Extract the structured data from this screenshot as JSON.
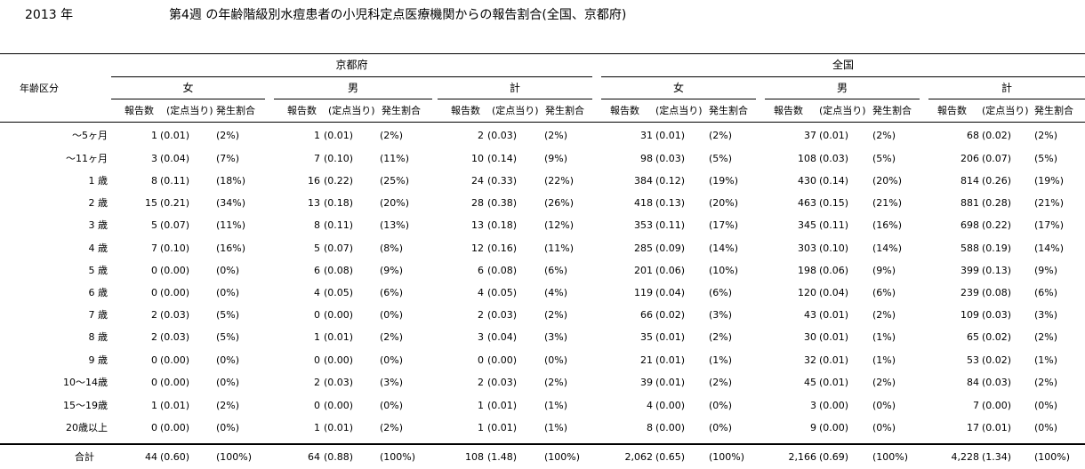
{
  "year": "2013 年",
  "title": "第4週 の年齢階級別水痘患者の小児科定点医療機関からの報告割合(全国、京都府)",
  "row_header": "年齢区分",
  "regions": [
    "京都府",
    "全国"
  ],
  "genders": [
    "女",
    "男",
    "計"
  ],
  "col_labels": [
    "報告数",
    "(定点当り)",
    "発生割合"
  ],
  "rows": [
    {
      "label": "～5ヶ月",
      "values": [
        [
          "1",
          "(0.01)",
          "(2%)"
        ],
        [
          "1",
          "(0.01)",
          "(2%)"
        ],
        [
          "2",
          "(0.03)",
          "(2%)"
        ],
        [
          "31",
          "(0.01)",
          "(2%)"
        ],
        [
          "37",
          "(0.01)",
          "(2%)"
        ],
        [
          "68",
          "(0.02)",
          "(2%)"
        ]
      ]
    },
    {
      "label": "～11ヶ月",
      "values": [
        [
          "3",
          "(0.04)",
          "(7%)"
        ],
        [
          "7",
          "(0.10)",
          "(11%)"
        ],
        [
          "10",
          "(0.14)",
          "(9%)"
        ],
        [
          "98",
          "(0.03)",
          "(5%)"
        ],
        [
          "108",
          "(0.03)",
          "(5%)"
        ],
        [
          "206",
          "(0.07)",
          "(5%)"
        ]
      ]
    },
    {
      "label": "1 歳",
      "values": [
        [
          "8",
          "(0.11)",
          "(18%)"
        ],
        [
          "16",
          "(0.22)",
          "(25%)"
        ],
        [
          "24",
          "(0.33)",
          "(22%)"
        ],
        [
          "384",
          "(0.12)",
          "(19%)"
        ],
        [
          "430",
          "(0.14)",
          "(20%)"
        ],
        [
          "814",
          "(0.26)",
          "(19%)"
        ]
      ]
    },
    {
      "label": "2 歳",
      "values": [
        [
          "15",
          "(0.21)",
          "(34%)"
        ],
        [
          "13",
          "(0.18)",
          "(20%)"
        ],
        [
          "28",
          "(0.38)",
          "(26%)"
        ],
        [
          "418",
          "(0.13)",
          "(20%)"
        ],
        [
          "463",
          "(0.15)",
          "(21%)"
        ],
        [
          "881",
          "(0.28)",
          "(21%)"
        ]
      ]
    },
    {
      "label": "3 歳",
      "values": [
        [
          "5",
          "(0.07)",
          "(11%)"
        ],
        [
          "8",
          "(0.11)",
          "(13%)"
        ],
        [
          "13",
          "(0.18)",
          "(12%)"
        ],
        [
          "353",
          "(0.11)",
          "(17%)"
        ],
        [
          "345",
          "(0.11)",
          "(16%)"
        ],
        [
          "698",
          "(0.22)",
          "(17%)"
        ]
      ]
    },
    {
      "label": "4 歳",
      "values": [
        [
          "7",
          "(0.10)",
          "(16%)"
        ],
        [
          "5",
          "(0.07)",
          "(8%)"
        ],
        [
          "12",
          "(0.16)",
          "(11%)"
        ],
        [
          "285",
          "(0.09)",
          "(14%)"
        ],
        [
          "303",
          "(0.10)",
          "(14%)"
        ],
        [
          "588",
          "(0.19)",
          "(14%)"
        ]
      ]
    },
    {
      "label": "5 歳",
      "values": [
        [
          "0",
          "(0.00)",
          "(0%)"
        ],
        [
          "6",
          "(0.08)",
          "(9%)"
        ],
        [
          "6",
          "(0.08)",
          "(6%)"
        ],
        [
          "201",
          "(0.06)",
          "(10%)"
        ],
        [
          "198",
          "(0.06)",
          "(9%)"
        ],
        [
          "399",
          "(0.13)",
          "(9%)"
        ]
      ]
    },
    {
      "label": "6 歳",
      "values": [
        [
          "0",
          "(0.00)",
          "(0%)"
        ],
        [
          "4",
          "(0.05)",
          "(6%)"
        ],
        [
          "4",
          "(0.05)",
          "(4%)"
        ],
        [
          "119",
          "(0.04)",
          "(6%)"
        ],
        [
          "120",
          "(0.04)",
          "(6%)"
        ],
        [
          "239",
          "(0.08)",
          "(6%)"
        ]
      ]
    },
    {
      "label": "7 歳",
      "values": [
        [
          "2",
          "(0.03)",
          "(5%)"
        ],
        [
          "0",
          "(0.00)",
          "(0%)"
        ],
        [
          "2",
          "(0.03)",
          "(2%)"
        ],
        [
          "66",
          "(0.02)",
          "(3%)"
        ],
        [
          "43",
          "(0.01)",
          "(2%)"
        ],
        [
          "109",
          "(0.03)",
          "(3%)"
        ]
      ]
    },
    {
      "label": "8 歳",
      "values": [
        [
          "2",
          "(0.03)",
          "(5%)"
        ],
        [
          "1",
          "(0.01)",
          "(2%)"
        ],
        [
          "3",
          "(0.04)",
          "(3%)"
        ],
        [
          "35",
          "(0.01)",
          "(2%)"
        ],
        [
          "30",
          "(0.01)",
          "(1%)"
        ],
        [
          "65",
          "(0.02)",
          "(2%)"
        ]
      ]
    },
    {
      "label": "9 歳",
      "values": [
        [
          "0",
          "(0.00)",
          "(0%)"
        ],
        [
          "0",
          "(0.00)",
          "(0%)"
        ],
        [
          "0",
          "(0.00)",
          "(0%)"
        ],
        [
          "21",
          "(0.01)",
          "(1%)"
        ],
        [
          "32",
          "(0.01)",
          "(1%)"
        ],
        [
          "53",
          "(0.02)",
          "(1%)"
        ]
      ]
    },
    {
      "label": "10～14歳",
      "values": [
        [
          "0",
          "(0.00)",
          "(0%)"
        ],
        [
          "2",
          "(0.03)",
          "(3%)"
        ],
        [
          "2",
          "(0.03)",
          "(2%)"
        ],
        [
          "39",
          "(0.01)",
          "(2%)"
        ],
        [
          "45",
          "(0.01)",
          "(2%)"
        ],
        [
          "84",
          "(0.03)",
          "(2%)"
        ]
      ]
    },
    {
      "label": "15～19歳",
      "values": [
        [
          "1",
          "(0.01)",
          "(2%)"
        ],
        [
          "0",
          "(0.00)",
          "(0%)"
        ],
        [
          "1",
          "(0.01)",
          "(1%)"
        ],
        [
          "4",
          "(0.00)",
          "(0%)"
        ],
        [
          "3",
          "(0.00)",
          "(0%)"
        ],
        [
          "7",
          "(0.00)",
          "(0%)"
        ]
      ]
    },
    {
      "label": "20歳以上",
      "values": [
        [
          "0",
          "(0.00)",
          "(0%)"
        ],
        [
          "1",
          "(0.01)",
          "(2%)"
        ],
        [
          "1",
          "(0.01)",
          "(1%)"
        ],
        [
          "8",
          "(0.00)",
          "(0%)"
        ],
        [
          "9",
          "(0.00)",
          "(0%)"
        ],
        [
          "17",
          "(0.01)",
          "(0%)"
        ]
      ]
    },
    {
      "label": "合計",
      "values": [
        [
          "44",
          "(0.60)",
          "(100%)"
        ],
        [
          "64",
          "(0.88)",
          "(100%)"
        ],
        [
          "108",
          "(1.48)",
          "(100%)"
        ],
        [
          "2,062",
          "(0.65)",
          "(100%)"
        ],
        [
          "2,166",
          "(0.69)",
          "(100%)"
        ],
        [
          "4,228",
          "(1.34)",
          "(100%)"
        ]
      ]
    }
  ]
}
